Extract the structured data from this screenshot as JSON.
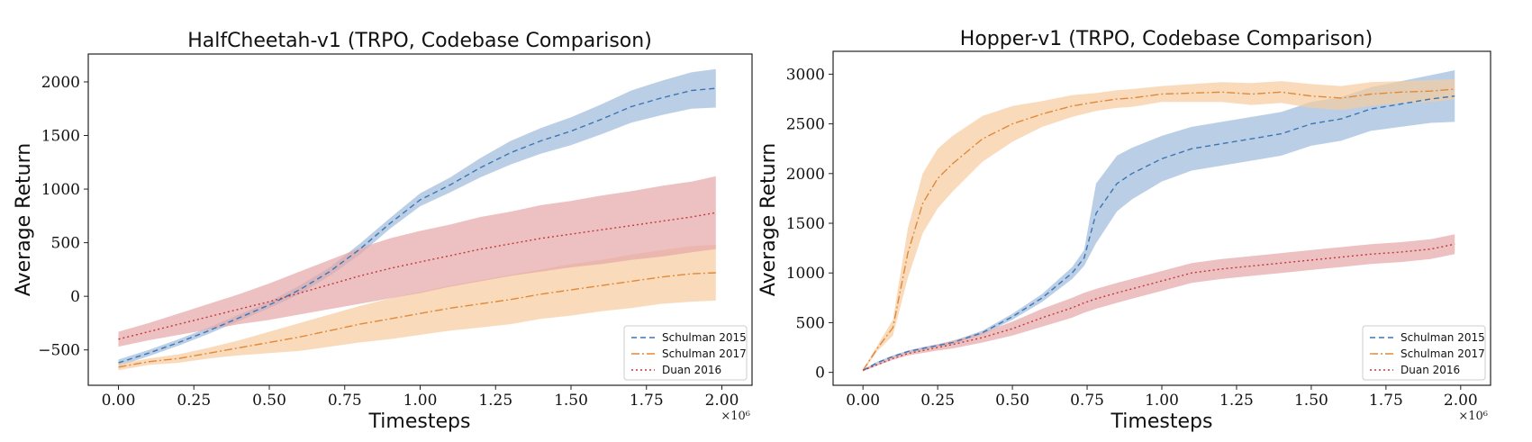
{
  "chart_data": [
    {
      "type": "line",
      "title": "HalfCheetah-v1 (TRPO, Codebase Comparison)",
      "xlabel": "Timesteps",
      "ylabel": "Average Return",
      "x_multiplier": "×10⁶",
      "xlim": [
        -0.1,
        2.1
      ],
      "ylim": [
        -830,
        2260
      ],
      "xticks": [
        0.0,
        0.25,
        0.5,
        0.75,
        1.0,
        1.25,
        1.5,
        1.75,
        2.0
      ],
      "xtick_labels": [
        "0.00",
        "0.25",
        "0.50",
        "0.75",
        "1.00",
        "1.25",
        "1.50",
        "1.75",
        "2.00"
      ],
      "yticks": [
        -500,
        0,
        500,
        1000,
        1500,
        2000
      ],
      "ytick_labels": [
        "−500",
        "0",
        "500",
        "1000",
        "1500",
        "2000"
      ],
      "legend_position": "bottom-right",
      "grid": false,
      "x": [
        0.0,
        0.1,
        0.2,
        0.3,
        0.4,
        0.5,
        0.6,
        0.7,
        0.8,
        0.9,
        1.0,
        1.1,
        1.2,
        1.3,
        1.4,
        1.5,
        1.6,
        1.7,
        1.8,
        1.9,
        1.98
      ],
      "series": [
        {
          "name": "Schulman 2015",
          "color": "#3d75b5",
          "fill": "#9dbbdb",
          "dash": "6,4",
          "values": [
            -620,
            -530,
            -430,
            -320,
            -200,
            -80,
            60,
            230,
            440,
            680,
            900,
            1040,
            1200,
            1340,
            1450,
            1540,
            1650,
            1770,
            1850,
            1920,
            1940
          ],
          "band": [
            30,
            30,
            30,
            30,
            30,
            30,
            40,
            40,
            50,
            50,
            60,
            70,
            90,
            110,
            120,
            130,
            140,
            150,
            160,
            170,
            180
          ]
        },
        {
          "name": "Schulman 2017",
          "color": "#e0893a",
          "fill": "#f6cc9f",
          "dash": "9,3,2,3",
          "values": [
            -660,
            -610,
            -580,
            -530,
            -480,
            -430,
            -380,
            -320,
            -260,
            -210,
            -160,
            -110,
            -70,
            -30,
            20,
            60,
            100,
            140,
            180,
            210,
            220
          ],
          "band": [
            30,
            30,
            40,
            50,
            70,
            100,
            130,
            150,
            170,
            190,
            200,
            210,
            220,
            230,
            230,
            240,
            240,
            250,
            250,
            260,
            260
          ]
        },
        {
          "name": "Duan 2016",
          "color": "#c2393a",
          "fill": "#e5a6a6",
          "dash": "2,3",
          "values": [
            -400,
            -330,
            -260,
            -190,
            -120,
            -50,
            30,
            110,
            190,
            260,
            320,
            380,
            440,
            490,
            540,
            580,
            620,
            660,
            700,
            740,
            780
          ],
          "band": [
            70,
            80,
            100,
            120,
            140,
            170,
            200,
            230,
            260,
            280,
            290,
            290,
            300,
            300,
            310,
            310,
            320,
            320,
            330,
            330,
            340
          ]
        }
      ]
    },
    {
      "type": "line",
      "title": "Hopper-v1 (TRPO, Codebase Comparison)",
      "xlabel": "Timesteps",
      "ylabel": "Average Return",
      "x_multiplier": "×10⁶",
      "xlim": [
        -0.1,
        2.1
      ],
      "ylim": [
        -130,
        3230
      ],
      "xticks": [
        0.0,
        0.25,
        0.5,
        0.75,
        1.0,
        1.25,
        1.5,
        1.75,
        2.0
      ],
      "xtick_labels": [
        "0.00",
        "0.25",
        "0.50",
        "0.75",
        "1.00",
        "1.25",
        "1.50",
        "1.75",
        "2.00"
      ],
      "yticks": [
        0,
        500,
        1000,
        1500,
        2000,
        2500,
        3000
      ],
      "ytick_labels": [
        "0",
        "500",
        "1000",
        "1500",
        "2000",
        "2500",
        "3000"
      ],
      "legend_position": "bottom-right",
      "grid": false,
      "x": [
        0.0,
        0.05,
        0.1,
        0.15,
        0.2,
        0.25,
        0.3,
        0.4,
        0.5,
        0.6,
        0.7,
        0.74,
        0.78,
        0.85,
        0.9,
        1.0,
        1.1,
        1.2,
        1.3,
        1.4,
        1.5,
        1.6,
        1.7,
        1.8,
        1.9,
        1.98
      ],
      "series": [
        {
          "name": "Schulman 2015",
          "color": "#3d75b5",
          "fill": "#9dbbdb",
          "dash": "6,4",
          "values": [
            20,
            100,
            160,
            210,
            240,
            270,
            300,
            400,
            560,
            750,
            1000,
            1150,
            1600,
            1900,
            2000,
            2150,
            2250,
            2300,
            2350,
            2400,
            2500,
            2550,
            2650,
            2700,
            2750,
            2780
          ],
          "band": [
            10,
            10,
            10,
            10,
            15,
            15,
            15,
            20,
            30,
            40,
            60,
            80,
            300,
            280,
            260,
            230,
            220,
            220,
            220,
            220,
            220,
            220,
            220,
            230,
            240,
            260
          ]
        },
        {
          "name": "Schulman 2017",
          "color": "#e0893a",
          "fill": "#f6cc9f",
          "dash": "9,3,2,3",
          "values": [
            20,
            250,
            450,
            1200,
            1700,
            1950,
            2100,
            2350,
            2500,
            2600,
            2680,
            2700,
            2720,
            2750,
            2760,
            2800,
            2810,
            2820,
            2800,
            2820,
            2780,
            2760,
            2800,
            2820,
            2830,
            2850
          ],
          "band": [
            10,
            30,
            80,
            250,
            300,
            300,
            280,
            230,
            180,
            130,
            110,
            100,
            90,
            90,
            90,
            80,
            90,
            100,
            110,
            110,
            120,
            120,
            120,
            110,
            110,
            100
          ]
        },
        {
          "name": "Duan 2016",
          "color": "#c2393a",
          "fill": "#e5a6a6",
          "dash": "2,3",
          "values": [
            20,
            80,
            140,
            190,
            220,
            250,
            280,
            350,
            440,
            550,
            650,
            700,
            740,
            800,
            840,
            920,
            1000,
            1040,
            1070,
            1100,
            1130,
            1160,
            1190,
            1210,
            1240,
            1290
          ],
          "band": [
            10,
            10,
            15,
            20,
            25,
            30,
            40,
            50,
            70,
            90,
            100,
            100,
            100,
            100,
            100,
            100,
            100,
            100,
            100,
            100,
            100,
            100,
            100,
            100,
            100,
            100
          ]
        }
      ]
    }
  ]
}
